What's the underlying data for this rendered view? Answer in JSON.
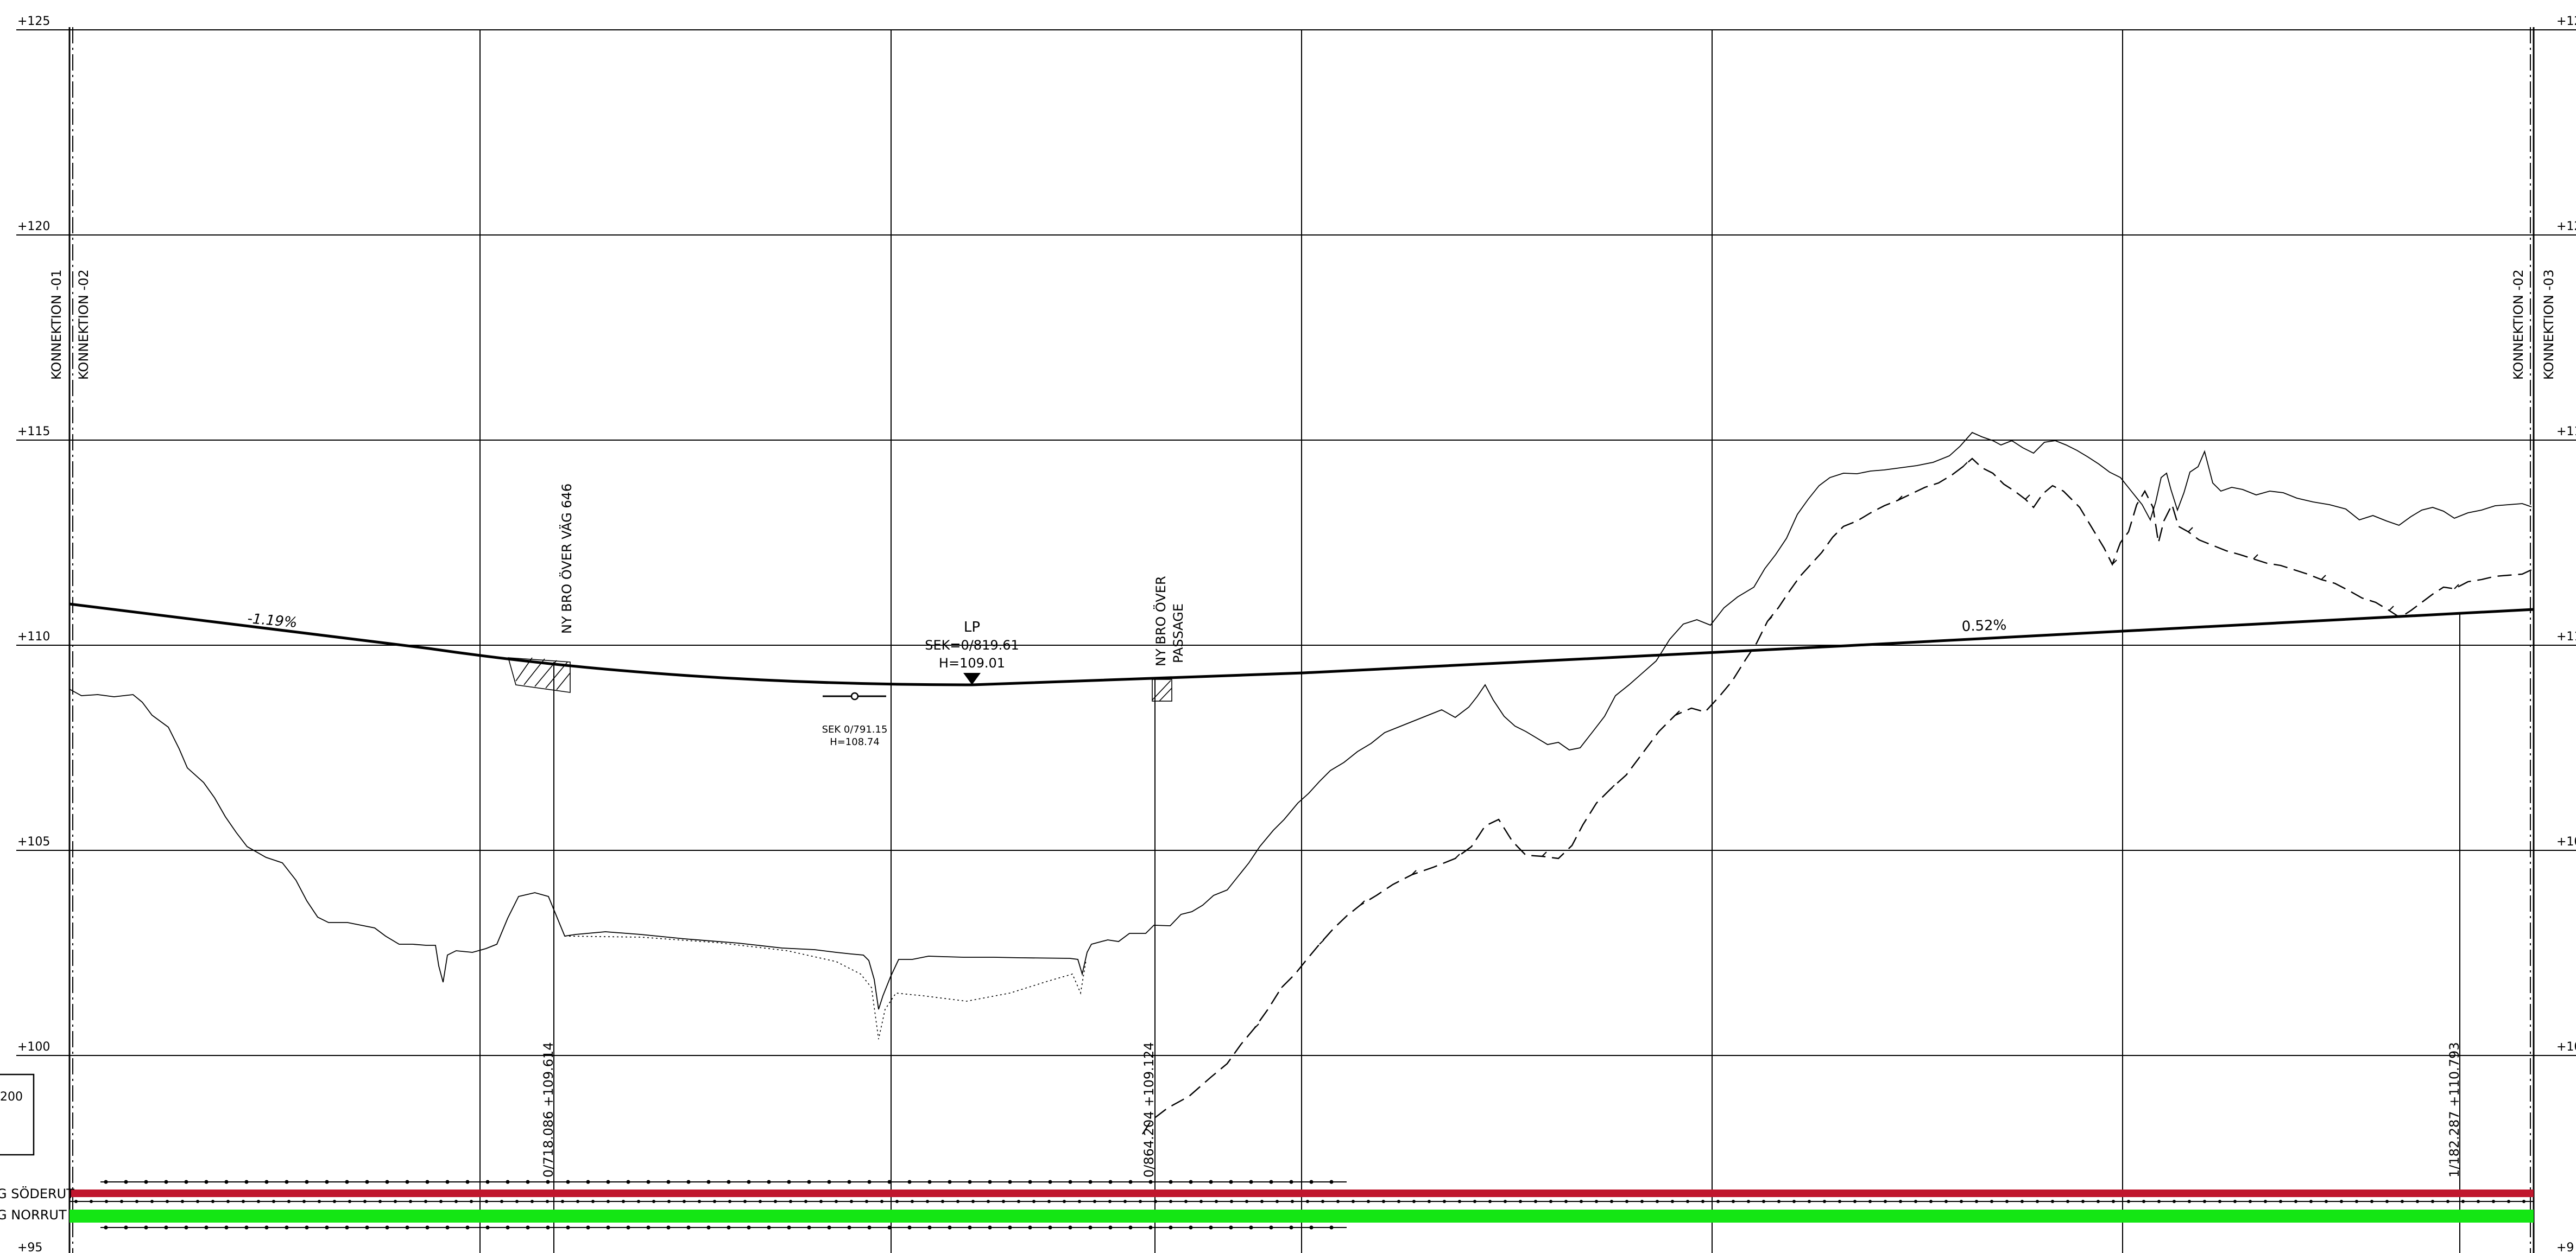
{
  "y_scale": {
    "labels": [
      "+125",
      "+120",
      "+115",
      "+110",
      "+105",
      "+100",
      "+95"
    ],
    "right_labels": [
      "+12",
      "+12",
      "+11",
      "+11",
      "+10",
      "+10",
      "+9"
    ]
  },
  "connections": {
    "left_a": "KONNEKTION -01",
    "left_b": "KONNEKTION -02",
    "right_a": "KONNEKTION -02",
    "right_b": "KONNEKTION -03"
  },
  "grades": {
    "left": "-1.19%",
    "right": "0.52%"
  },
  "low_point": {
    "line1": "LP",
    "line2": "SEK=0/819.61",
    "line3": "H=109.01"
  },
  "culvert": {
    "line1": "SEK 0/791.15",
    "line2": "H=108.74"
  },
  "bridges": {
    "bridge1": "NY BRO ÖVER VÄG 646",
    "bridge2_line1": "NY BRO ÖVER",
    "bridge2_line2": "PASSAGE"
  },
  "stations": {
    "s1": "0/718.086  +109.614",
    "s2": "0/864.204  +109.124",
    "s3": "1/182.287  +110.793"
  },
  "scale_box": "200",
  "tracks": {
    "south": "G SÖDERUT",
    "north": "G NORRUT"
  },
  "colors": {
    "south_track": "#c0162d",
    "north_track": "#14e614",
    "lines": "#000000"
  }
}
